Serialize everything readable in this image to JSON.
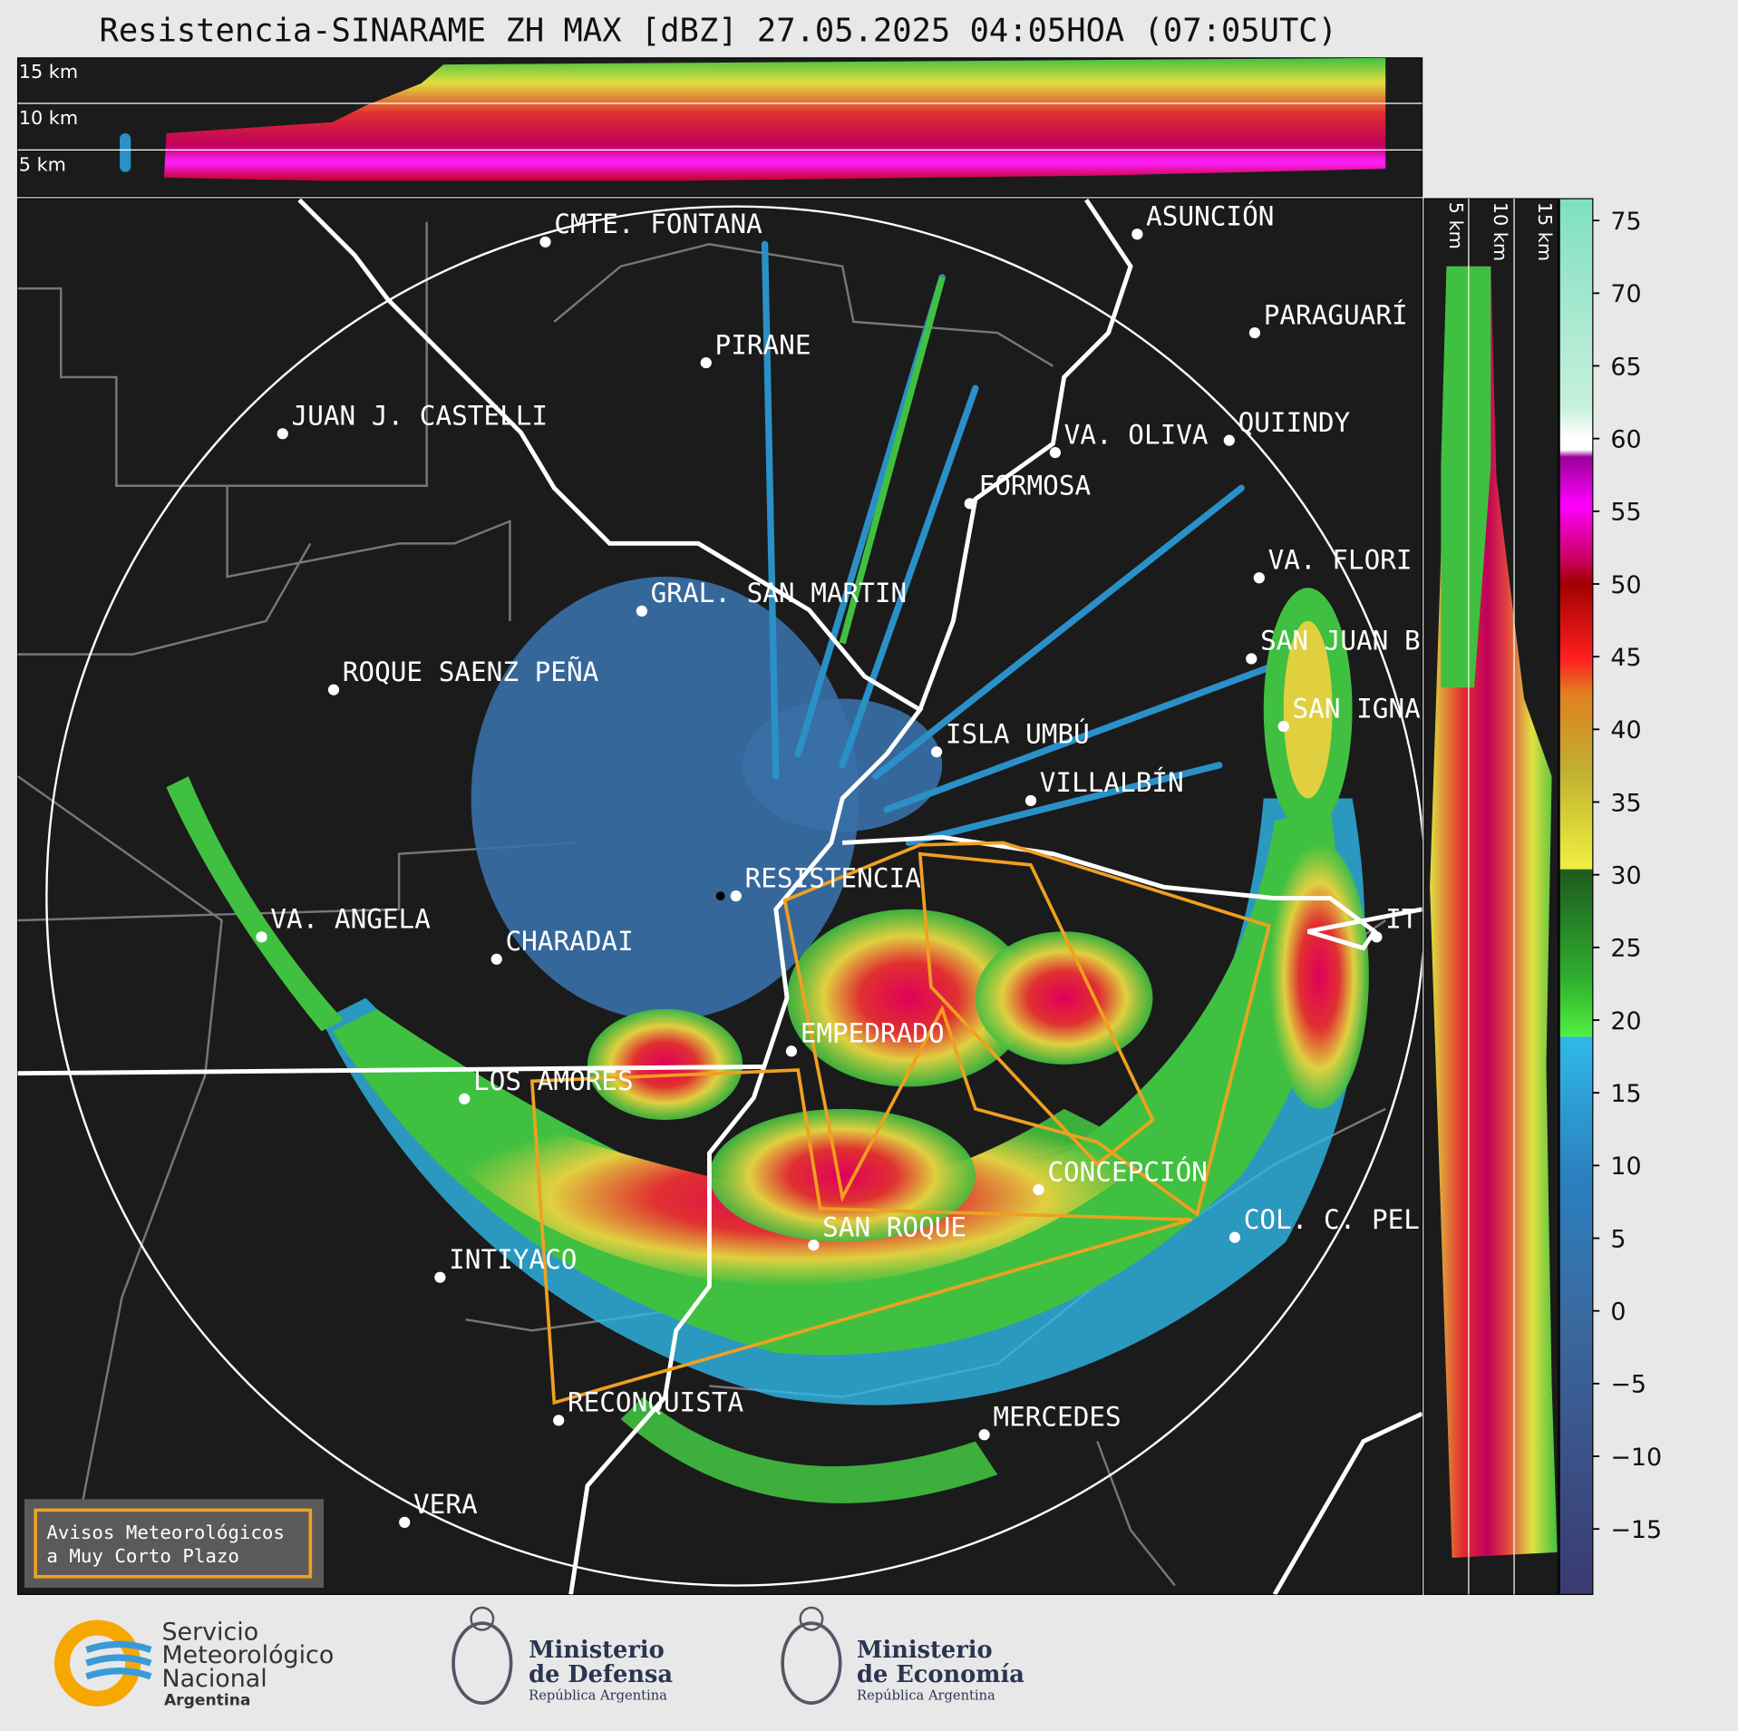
{
  "title": "Resistencia-SINARAME ZH MAX [dBZ] 27.05.2025 04:05HOA (07:05UTC)",
  "top_panel": {
    "height_labels": [
      "15 km",
      "10 km",
      "5 km"
    ]
  },
  "side_panel": {
    "height_labels": [
      "5 km",
      "10 km",
      "15 km"
    ]
  },
  "colorbar": {
    "lim": [
      -19.5,
      76.5
    ],
    "ticks": [
      75,
      70,
      65,
      60,
      55,
      50,
      45,
      40,
      35,
      30,
      25,
      20,
      15,
      10,
      5,
      0,
      {
        "value": -5,
        "label": "−5"
      },
      {
        "value": -10,
        "label": "−10"
      },
      {
        "value": -15,
        "label": "−15"
      }
    ]
  },
  "cities": [
    "CMTE. FONTANA",
    "PIRANE",
    "JUAN J. CASTELLI",
    "ASUNCIÓN",
    "PARAGUARÍ",
    "VA. OLIVA",
    "QUIINDY",
    "FORMOSA",
    "VA. FLORI",
    "GRAL. SAN MARTIN",
    "SAN JUAN B",
    "ROQUE SAENZ PEÑA",
    "SAN IGNA",
    "ISLA UMBÚ",
    "VILLALBÍN",
    "RESISTENCIA",
    "VA. ANGELA",
    "CHARADAI",
    "IT",
    "EMPEDRADO",
    "LOS AMORES",
    "CONCEPCIÓN",
    "COL. C. PEL",
    "SAN ROQUE",
    "INTIYACO",
    "RECONQUISTA",
    "MERCEDES",
    "VERA"
  ],
  "legend": {
    "lines": [
      "Avisos Meteorológicos",
      "a Muy Corto Plazo"
    ]
  },
  "logos": [
    {
      "lines": [
        "Servicio",
        "Meteorológico",
        "Nacional"
      ],
      "sub": "Argentina"
    },
    {
      "lines": [
        "Ministerio",
        "de Defensa"
      ],
      "sub": "República Argentina"
    },
    {
      "lines": [
        "Ministerio",
        "de Economía"
      ],
      "sub": "República Argentina"
    }
  ]
}
